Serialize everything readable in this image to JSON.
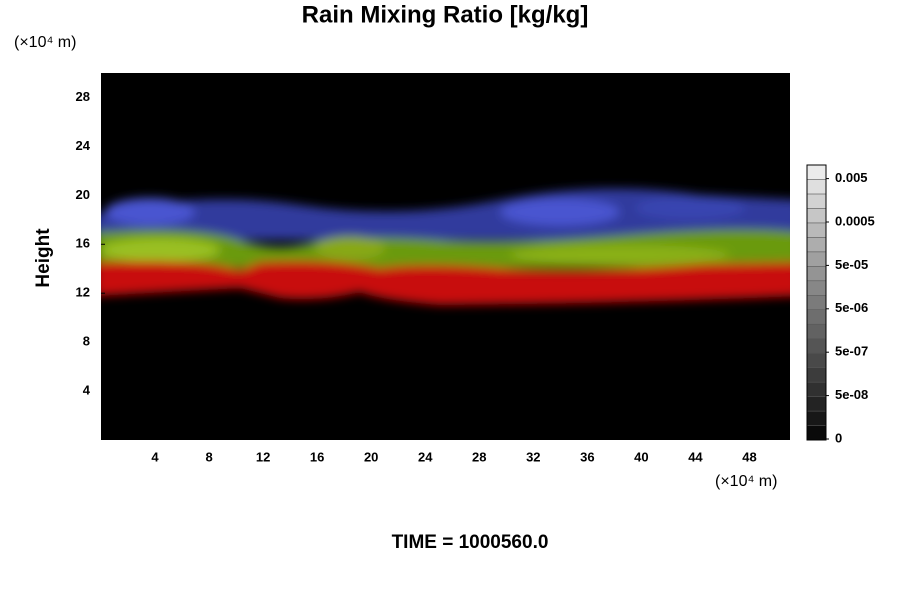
{
  "chart_data": {
    "type": "contour",
    "title": "Rain Mixing Ratio [kg/kg]",
    "y_label": "Height",
    "x_unit": "(×10⁴ m)",
    "y_unit": "(×10⁴ m)",
    "time_label": "TIME = 1000560.0",
    "xlim": [
      0,
      51
    ],
    "xticks": [
      4,
      8,
      12,
      16,
      20,
      24,
      28,
      32,
      36,
      40,
      44,
      48
    ],
    "ylim": [
      0,
      30
    ],
    "yticks": [
      4,
      8,
      12,
      16,
      20,
      24,
      28
    ],
    "colorbar_ticks": [
      0,
      {
        "value": 5e-08,
        "label": "5e-08"
      },
      {
        "value": 5e-07,
        "label": "5e-07"
      },
      {
        "value": 5e-06,
        "label": "5e-06"
      },
      {
        "value": 5e-05,
        "label": "5e-05"
      },
      {
        "value": 0.0005,
        "label": "0.0005"
      },
      {
        "value": 0.005,
        "label": "0.005"
      }
    ],
    "background": "#000000"
  }
}
